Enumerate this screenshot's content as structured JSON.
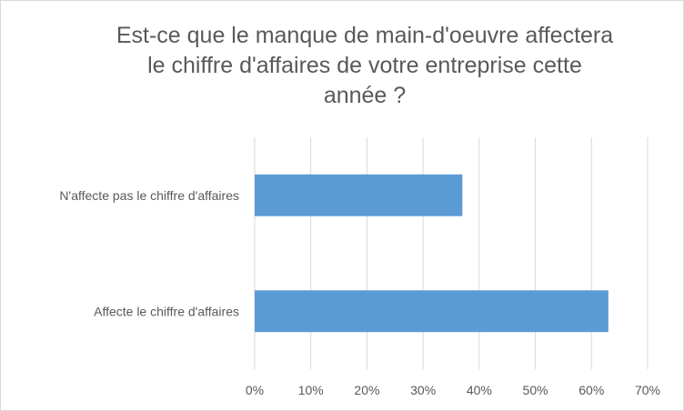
{
  "chart_data": {
    "type": "bar",
    "orientation": "horizontal",
    "title_lines": [
      "Est-ce que le manque de main-d'oeuvre affectera",
      "le chiffre d'affaires de votre entreprise cette",
      "année ?"
    ],
    "categories": [
      "N'affecte pas le chiffre d'affaires",
      "Affecte le chiffre d'affaires"
    ],
    "values": [
      37,
      63
    ],
    "unit": "%",
    "xlim": [
      0,
      70
    ],
    "xticks": [
      "0%",
      "10%",
      "20%",
      "30%",
      "40%",
      "50%",
      "60%",
      "70%"
    ],
    "grid": "vertical",
    "legend": "none",
    "bar_color": "#5b9bd5",
    "grid_color": "#d9d9d9",
    "text_color": "#595959"
  }
}
